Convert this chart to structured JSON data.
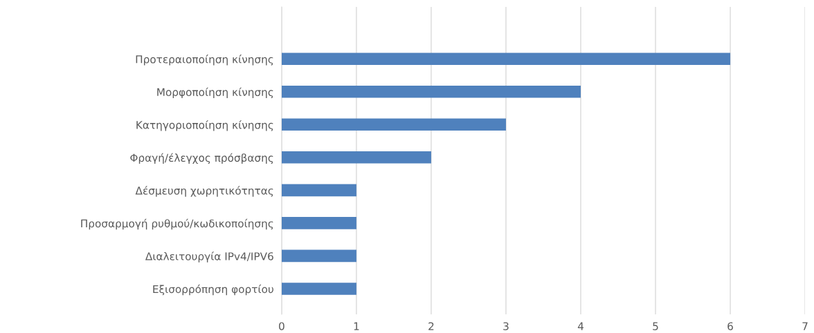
{
  "chart_data": {
    "type": "bar",
    "orientation": "horizontal",
    "categories": [
      "Προτεραιοποίηση κίνησης",
      "Μορφοποίηση κίνησης",
      "Κατηγοριοποίηση κίνησης",
      "Φραγή/έλεγχος πρόσβασης",
      "Δέσμευση χωρητικότητας",
      "Προσαρμογή ρυθμού/κωδικοποίησης",
      "Διαλειτουργία IPv4/IPV6",
      "Εξισορρόπηση φορτίου"
    ],
    "values": [
      6,
      4,
      3,
      2,
      1,
      1,
      1,
      1
    ],
    "color": "#4f81bd",
    "xlim": [
      0,
      7
    ],
    "xticks": [
      0,
      1,
      2,
      3,
      4,
      5,
      6,
      7
    ],
    "grid": "x",
    "legend": false
  }
}
